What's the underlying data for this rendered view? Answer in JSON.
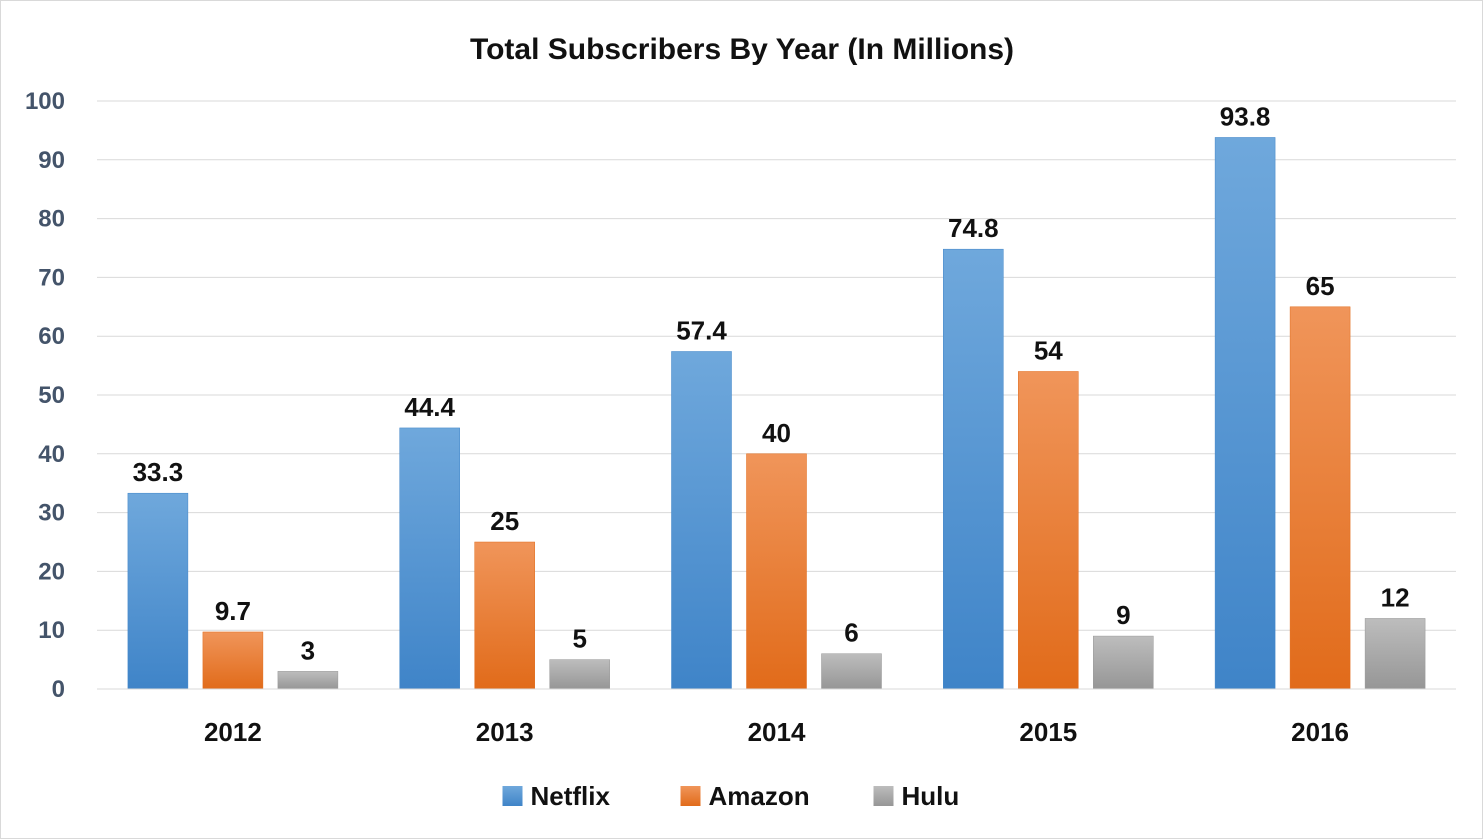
{
  "chart_data": {
    "type": "bar",
    "title": "Total Subscribers By Year (In Millions)",
    "categories": [
      "2012",
      "2013",
      "2014",
      "2015",
      "2016"
    ],
    "series": [
      {
        "name": "Netflix",
        "values": [
          33.3,
          44.4,
          57.4,
          74.8,
          93.8
        ],
        "color": "#5b9bd5",
        "color_light": "#6fa8dc",
        "color_dark": "#3f84c8"
      },
      {
        "name": "Amazon",
        "values": [
          9.7,
          25,
          40,
          54,
          65
        ],
        "color": "#ed7d31",
        "color_light": "#f0955a",
        "color_dark": "#e16b1a"
      },
      {
        "name": "Hulu",
        "values": [
          3,
          5,
          6,
          9,
          12
        ],
        "color": "#a5a5a5",
        "color_light": "#bdbdbd",
        "color_dark": "#969696"
      }
    ],
    "data_labels": [
      [
        "33.3",
        "44.4",
        "57.4",
        "74.8",
        "93.8"
      ],
      [
        "9.7",
        "25",
        "40",
        "54",
        "65"
      ],
      [
        "3",
        "5",
        "6",
        "9",
        "12"
      ]
    ],
    "ylim": [
      0,
      100
    ],
    "yticks": [
      "0",
      "10",
      "20",
      "30",
      "40",
      "50",
      "60",
      "70",
      "80",
      "90",
      "100"
    ],
    "xlabel": "",
    "ylabel": "",
    "grid": true,
    "legend_position": "bottom"
  }
}
